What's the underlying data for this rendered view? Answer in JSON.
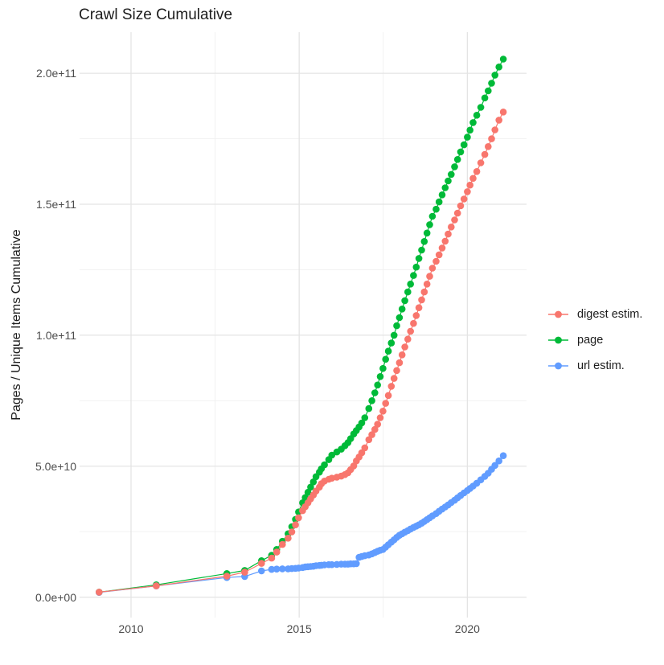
{
  "figure": {
    "title": "Crawl Size Cumulative",
    "y_axis_title": "Pages / Unique Items Cumulative",
    "background_color": "#FFFFFF",
    "grid_major_color": "#E4E4E4",
    "grid_minor_color": "#F0F0F0",
    "axis_text_color": "#4D4D4D",
    "title_color": "#1C1C1C"
  },
  "legend": {
    "position": "right",
    "items": [
      {
        "label": "digest estim.",
        "color": "#F8766D"
      },
      {
        "label": "page",
        "color": "#00BA38"
      },
      {
        "label": "url estim.",
        "color": "#619CFF"
      }
    ]
  },
  "chart_data": {
    "type": "line",
    "title": "Crawl Size Cumulative",
    "xlabel": "",
    "ylabel": "Pages / Unique Items Cumulative",
    "grid": true,
    "legend_position": "right",
    "value_unit": "pages, values stored in billions (1e9)",
    "x_domain": [
      2008.47,
      2021.76
    ],
    "y_domain_billions": [
      -7.8,
      215.7
    ],
    "x_ticks": [
      {
        "value": 2010,
        "label": "2010"
      },
      {
        "value": 2015,
        "label": "2015"
      },
      {
        "value": 2020,
        "label": "2020"
      }
    ],
    "x_minor_ticks": [
      2012.5,
      2017.5
    ],
    "y_ticks": [
      {
        "value": 0,
        "label": "0.0e+00"
      },
      {
        "value": 50,
        "label": "5.0e+10"
      },
      {
        "value": 100,
        "label": "1.0e+11"
      },
      {
        "value": 150,
        "label": "1.5e+11"
      },
      {
        "value": 200,
        "label": "2.0e+11"
      }
    ],
    "y_minor_ticks": [
      25,
      75,
      125,
      175
    ],
    "series": [
      {
        "name": "page",
        "color": "#00BA38",
        "points": [
          [
            2009.05,
            1.9
          ],
          [
            2010.75,
            4.7
          ],
          [
            2012.85,
            9.0
          ],
          [
            2013.38,
            10.2
          ],
          [
            2013.88,
            13.9
          ],
          [
            2014.18,
            16.0
          ],
          [
            2014.33,
            18.2
          ],
          [
            2014.5,
            21.3
          ],
          [
            2014.67,
            24.2
          ],
          [
            2014.78,
            26.9
          ],
          [
            2014.89,
            29.7
          ],
          [
            2014.98,
            32.5
          ],
          [
            2015.1,
            36.0
          ],
          [
            2015.18,
            38.0
          ],
          [
            2015.26,
            40.0
          ],
          [
            2015.34,
            42.0
          ],
          [
            2015.42,
            44.0
          ],
          [
            2015.5,
            46.0
          ],
          [
            2015.6,
            47.7
          ],
          [
            2015.66,
            49.0
          ],
          [
            2015.75,
            50.5
          ],
          [
            2015.88,
            52.5
          ],
          [
            2015.97,
            54.2
          ],
          [
            2016.12,
            55.4
          ],
          [
            2016.25,
            56.5
          ],
          [
            2016.36,
            57.8
          ],
          [
            2016.45,
            59.0
          ],
          [
            2016.53,
            60.5
          ],
          [
            2016.62,
            62.3
          ],
          [
            2016.7,
            63.6
          ],
          [
            2016.78,
            65.0
          ],
          [
            2016.86,
            66.5
          ],
          [
            2016.95,
            68.5
          ],
          [
            2017.07,
            72.0
          ],
          [
            2017.16,
            75.0
          ],
          [
            2017.25,
            78.0
          ],
          [
            2017.33,
            81.0
          ],
          [
            2017.41,
            84.2
          ],
          [
            2017.49,
            87.3
          ],
          [
            2017.57,
            90.8
          ],
          [
            2017.65,
            93.9
          ],
          [
            2017.74,
            97.0
          ],
          [
            2017.82,
            100.0
          ],
          [
            2017.9,
            103.6
          ],
          [
            2017.98,
            106.7
          ],
          [
            2018.06,
            110.0
          ],
          [
            2018.14,
            113.2
          ],
          [
            2018.23,
            116.5
          ],
          [
            2018.31,
            119.5
          ],
          [
            2018.4,
            122.8
          ],
          [
            2018.48,
            126.0
          ],
          [
            2018.56,
            129.3
          ],
          [
            2018.64,
            132.5
          ],
          [
            2018.72,
            135.8
          ],
          [
            2018.8,
            139.0
          ],
          [
            2018.88,
            142.2
          ],
          [
            2018.96,
            145.4
          ],
          [
            2019.07,
            148.1
          ],
          [
            2019.16,
            150.9
          ],
          [
            2019.25,
            153.6
          ],
          [
            2019.34,
            156.3
          ],
          [
            2019.43,
            158.9
          ],
          [
            2019.52,
            161.4
          ],
          [
            2019.62,
            164.3
          ],
          [
            2019.71,
            167.1
          ],
          [
            2019.8,
            170.0
          ],
          [
            2019.9,
            172.7
          ],
          [
            2020.0,
            175.6
          ],
          [
            2020.08,
            178.3
          ],
          [
            2020.17,
            181.2
          ],
          [
            2020.28,
            184.0
          ],
          [
            2020.4,
            187.0
          ],
          [
            2020.52,
            190.6
          ],
          [
            2020.62,
            193.3
          ],
          [
            2020.72,
            196.2
          ],
          [
            2020.82,
            199.3
          ],
          [
            2020.94,
            202.4
          ],
          [
            2021.07,
            205.4
          ]
        ]
      },
      {
        "name": "url estim.",
        "color": "#619CFF",
        "points": [
          [
            2009.05,
            1.8
          ],
          [
            2010.75,
            4.3
          ],
          [
            2012.85,
            7.5
          ],
          [
            2013.38,
            7.9
          ],
          [
            2013.88,
            10.0
          ],
          [
            2014.18,
            10.6
          ],
          [
            2014.33,
            10.7
          ],
          [
            2014.5,
            10.8
          ],
          [
            2014.67,
            10.8
          ],
          [
            2014.78,
            10.9
          ],
          [
            2014.89,
            11.0
          ],
          [
            2014.98,
            11.1
          ],
          [
            2015.1,
            11.3
          ],
          [
            2015.18,
            11.5
          ],
          [
            2015.26,
            11.6
          ],
          [
            2015.34,
            11.7
          ],
          [
            2015.42,
            11.8
          ],
          [
            2015.5,
            12.0
          ],
          [
            2015.6,
            12.1
          ],
          [
            2015.66,
            12.2
          ],
          [
            2015.75,
            12.3
          ],
          [
            2015.88,
            12.4
          ],
          [
            2015.97,
            12.4
          ],
          [
            2016.12,
            12.5
          ],
          [
            2016.25,
            12.6
          ],
          [
            2016.36,
            12.6
          ],
          [
            2016.45,
            12.6
          ],
          [
            2016.53,
            12.7
          ],
          [
            2016.62,
            12.7
          ],
          [
            2016.7,
            12.8
          ],
          [
            2016.78,
            15.2
          ],
          [
            2016.86,
            15.5
          ],
          [
            2016.95,
            15.8
          ],
          [
            2017.07,
            16.1
          ],
          [
            2017.16,
            16.5
          ],
          [
            2017.25,
            17.0
          ],
          [
            2017.33,
            17.5
          ],
          [
            2017.41,
            17.9
          ],
          [
            2017.49,
            18.2
          ],
          [
            2017.57,
            19.1
          ],
          [
            2017.65,
            20.0
          ],
          [
            2017.74,
            21.0
          ],
          [
            2017.82,
            21.9
          ],
          [
            2017.9,
            22.8
          ],
          [
            2017.98,
            23.6
          ],
          [
            2018.06,
            24.2
          ],
          [
            2018.14,
            24.8
          ],
          [
            2018.23,
            25.4
          ],
          [
            2018.31,
            26.0
          ],
          [
            2018.4,
            26.6
          ],
          [
            2018.48,
            27.1
          ],
          [
            2018.56,
            27.6
          ],
          [
            2018.64,
            28.2
          ],
          [
            2018.72,
            28.9
          ],
          [
            2018.8,
            29.6
          ],
          [
            2018.88,
            30.3
          ],
          [
            2018.96,
            31.0
          ],
          [
            2019.07,
            31.9
          ],
          [
            2019.16,
            32.8
          ],
          [
            2019.25,
            33.6
          ],
          [
            2019.34,
            34.4
          ],
          [
            2019.43,
            35.2
          ],
          [
            2019.52,
            36.1
          ],
          [
            2019.62,
            37.0
          ],
          [
            2019.71,
            37.9
          ],
          [
            2019.8,
            38.8
          ],
          [
            2019.9,
            39.8
          ],
          [
            2020.0,
            40.7
          ],
          [
            2020.08,
            41.5
          ],
          [
            2020.17,
            42.4
          ],
          [
            2020.28,
            43.5
          ],
          [
            2020.4,
            44.8
          ],
          [
            2020.52,
            46.1
          ],
          [
            2020.62,
            47.3
          ],
          [
            2020.72,
            48.8
          ],
          [
            2020.82,
            50.3
          ],
          [
            2020.94,
            52.0
          ],
          [
            2021.07,
            54.0
          ]
        ]
      },
      {
        "name": "digest estim.",
        "color": "#F8766D",
        "points": [
          [
            2009.05,
            1.9
          ],
          [
            2010.75,
            4.3
          ],
          [
            2012.85,
            8.0
          ],
          [
            2013.38,
            9.5
          ],
          [
            2013.88,
            12.9
          ],
          [
            2014.18,
            14.9
          ],
          [
            2014.33,
            17.2
          ],
          [
            2014.5,
            20.1
          ],
          [
            2014.67,
            22.5
          ],
          [
            2014.78,
            24.9
          ],
          [
            2014.89,
            27.6
          ],
          [
            2014.98,
            30.3
          ],
          [
            2015.1,
            33.0
          ],
          [
            2015.18,
            34.5
          ],
          [
            2015.26,
            36.0
          ],
          [
            2015.34,
            37.5
          ],
          [
            2015.42,
            39.0
          ],
          [
            2015.5,
            40.5
          ],
          [
            2015.6,
            42.0
          ],
          [
            2015.66,
            43.3
          ],
          [
            2015.75,
            44.3
          ],
          [
            2015.88,
            45.0
          ],
          [
            2015.97,
            45.4
          ],
          [
            2016.12,
            45.8
          ],
          [
            2016.25,
            46.2
          ],
          [
            2016.36,
            46.8
          ],
          [
            2016.45,
            47.5
          ],
          [
            2016.53,
            48.7
          ],
          [
            2016.62,
            50.1
          ],
          [
            2016.7,
            52.0
          ],
          [
            2016.78,
            53.5
          ],
          [
            2016.86,
            55.1
          ],
          [
            2016.95,
            57.0
          ],
          [
            2017.07,
            60.1
          ],
          [
            2017.16,
            62.0
          ],
          [
            2017.25,
            64.0
          ],
          [
            2017.33,
            66.0
          ],
          [
            2017.41,
            68.5
          ],
          [
            2017.49,
            71.0
          ],
          [
            2017.57,
            74.0
          ],
          [
            2017.65,
            77.0
          ],
          [
            2017.74,
            80.5
          ],
          [
            2017.82,
            83.5
          ],
          [
            2017.9,
            86.5
          ],
          [
            2017.98,
            89.5
          ],
          [
            2018.06,
            92.5
          ],
          [
            2018.14,
            95.5
          ],
          [
            2018.23,
            98.5
          ],
          [
            2018.31,
            101.5
          ],
          [
            2018.4,
            104.5
          ],
          [
            2018.48,
            107.5
          ],
          [
            2018.56,
            110.5
          ],
          [
            2018.64,
            113.5
          ],
          [
            2018.72,
            116.5
          ],
          [
            2018.8,
            119.5
          ],
          [
            2018.88,
            122.5
          ],
          [
            2018.96,
            125.6
          ],
          [
            2019.07,
            128.2
          ],
          [
            2019.16,
            130.7
          ],
          [
            2019.25,
            133.3
          ],
          [
            2019.34,
            135.9
          ],
          [
            2019.43,
            138.6
          ],
          [
            2019.52,
            141.3
          ],
          [
            2019.62,
            144.0
          ],
          [
            2019.71,
            146.6
          ],
          [
            2019.8,
            149.4
          ],
          [
            2019.9,
            152.0
          ],
          [
            2020.0,
            154.8
          ],
          [
            2020.08,
            157.3
          ],
          [
            2020.17,
            159.9
          ],
          [
            2020.28,
            162.5
          ],
          [
            2020.4,
            165.8
          ],
          [
            2020.52,
            169.0
          ],
          [
            2020.62,
            172.0
          ],
          [
            2020.72,
            175.0
          ],
          [
            2020.82,
            178.4
          ],
          [
            2020.94,
            182.1
          ],
          [
            2021.07,
            185.2
          ]
        ]
      }
    ]
  }
}
